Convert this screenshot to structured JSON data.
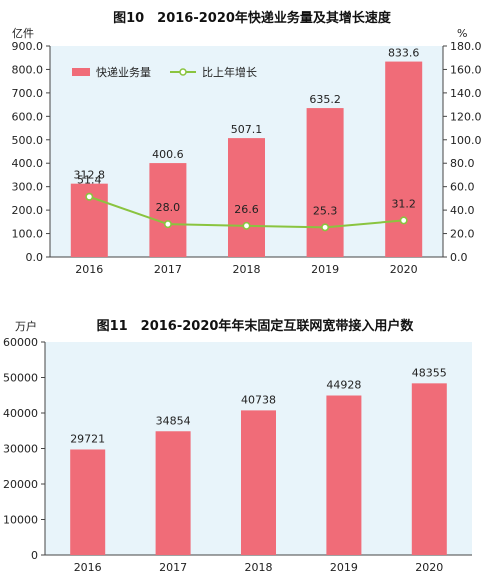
{
  "chart_data": [
    {
      "type": "bar",
      "title": "图10　2016-2020年快递业务量及其增长速度",
      "categories": [
        "2016",
        "2017",
        "2018",
        "2019",
        "2020"
      ],
      "left_unit": "亿件",
      "right_unit": "%",
      "ylim": [
        0,
        900
      ],
      "y2lim": [
        0,
        180
      ],
      "yticks": [
        "0.0",
        "100.0",
        "200.0",
        "300.0",
        "400.0",
        "500.0",
        "600.0",
        "700.0",
        "800.0",
        "900.0"
      ],
      "y2ticks": [
        "0.0",
        "20.0",
        "40.0",
        "60.0",
        "80.0",
        "100.0",
        "120.0",
        "140.0",
        "160.0",
        "180.0"
      ],
      "legend_position": "top-left",
      "series": [
        {
          "name": "快递业务量",
          "type": "bar",
          "axis": "left",
          "color": "#f06c78",
          "values": [
            312.8,
            400.6,
            507.1,
            635.2,
            833.6
          ],
          "labels": [
            "312.8",
            "400.6",
            "507.1",
            "635.2",
            "833.6"
          ]
        },
        {
          "name": "比上年增长",
          "type": "line",
          "axis": "right",
          "color": "#8ac43f",
          "values": [
            51.4,
            28.0,
            26.6,
            25.3,
            31.2
          ],
          "labels": [
            "51.4",
            "28.0",
            "26.6",
            "25.3",
            "31.2"
          ]
        }
      ],
      "background": "#e8f4fa"
    },
    {
      "type": "bar",
      "title": "图11　2016-2020年年末固定互联网宽带接入用户数",
      "categories": [
        "2016",
        "2017",
        "2018",
        "2019",
        "2020"
      ],
      "left_unit": "万户",
      "ylim": [
        0,
        60000
      ],
      "yticks": [
        "0",
        "10000",
        "20000",
        "30000",
        "40000",
        "50000",
        "60000"
      ],
      "series": [
        {
          "type": "bar",
          "color": "#f06c78",
          "values": [
            29721,
            34854,
            40738,
            44928,
            48355
          ],
          "labels": [
            "29721",
            "34854",
            "40738",
            "44928",
            "48355"
          ]
        }
      ],
      "background": "#e8f4fa"
    }
  ]
}
